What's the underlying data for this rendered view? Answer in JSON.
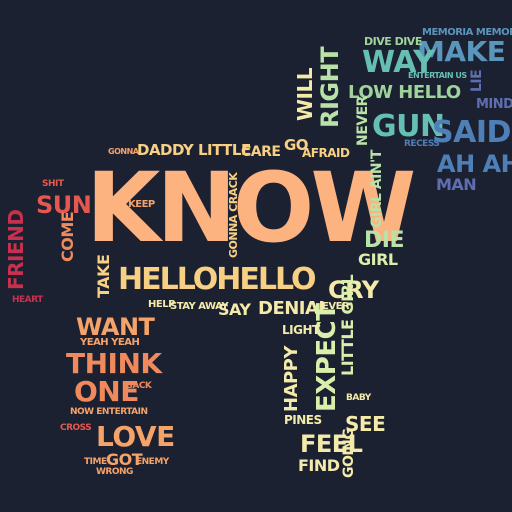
{
  "palette": {
    "background": "#1c2131",
    "peach": "#fdb380",
    "light_orange": "#f6a36a",
    "orange": "#f08a5d",
    "red_orange": "#e5584f",
    "crimson": "#c8304d",
    "yellow": "#f7d084",
    "pale_yellow": "#f4ebaa",
    "pale_green": "#d9efab",
    "light_green": "#b8e2a7",
    "green": "#9ed49b",
    "teal": "#66bfb3",
    "steel_blue": "#5a95bc",
    "blue": "#4e7fb6",
    "indigo": "#5e6fb1",
    "purple": "#6f4f9f"
  },
  "words": [
    {
      "id": "know",
      "text": "KNOW",
      "color": "peach"
    },
    {
      "id": "hellohello",
      "text": "HELLOHELLO",
      "color": "yellow"
    },
    {
      "id": "daddy-little",
      "text": "DADDY LITTLE",
      "color": "yellow"
    },
    {
      "id": "care",
      "text": "CARE",
      "color": "yellow"
    },
    {
      "id": "go",
      "text": "GO",
      "color": "yellow"
    },
    {
      "id": "afraid",
      "text": "AFRAID",
      "color": "yellow"
    },
    {
      "id": "make",
      "text": "MAKE",
      "color": "steel_blue"
    },
    {
      "id": "way",
      "text": "WAY",
      "color": "teal"
    },
    {
      "id": "right",
      "text": "RIGHT",
      "color": "light_green"
    },
    {
      "id": "low-hello",
      "text": "LOW HELLO",
      "color": "green"
    },
    {
      "id": "gun",
      "text": "GUN",
      "color": "teal"
    },
    {
      "id": "said",
      "text": "SAID",
      "color": "blue"
    },
    {
      "id": "ah-ah",
      "text": "AH AH",
      "color": "blue"
    },
    {
      "id": "man",
      "text": "MAN",
      "color": "indigo"
    },
    {
      "id": "never",
      "text": "NEVER",
      "color": "light_green"
    },
    {
      "id": "will",
      "text": "WILL",
      "color": "pale_yellow"
    },
    {
      "id": "die",
      "text": "DIE",
      "color": "light_green"
    },
    {
      "id": "girl",
      "text": "GIRL",
      "color": "pale_green"
    },
    {
      "id": "cry",
      "text": "CRY",
      "color": "pale_yellow"
    },
    {
      "id": "denial",
      "text": "DENIAL",
      "color": "pale_yellow"
    },
    {
      "id": "say",
      "text": "SAY",
      "color": "pale_yellow"
    },
    {
      "id": "stay-away",
      "text": "STAY AWAY",
      "color": "pale_yellow"
    },
    {
      "id": "want",
      "text": "WANT",
      "color": "light_orange"
    },
    {
      "id": "think",
      "text": "THINK",
      "color": "orange"
    },
    {
      "id": "one",
      "text": "ONE",
      "color": "orange"
    },
    {
      "id": "love",
      "text": "LOVE",
      "color": "light_orange"
    },
    {
      "id": "got",
      "text": "GOT",
      "color": "light_orange"
    },
    {
      "id": "sun",
      "text": "SUN",
      "color": "red_orange"
    },
    {
      "id": "friend",
      "text": "FRIEND",
      "color": "crimson"
    },
    {
      "id": "come",
      "text": "COME",
      "color": "orange"
    },
    {
      "id": "take",
      "text": "TAKE",
      "color": "yellow"
    },
    {
      "id": "happy",
      "text": "HAPPY",
      "color": "pale_yellow"
    },
    {
      "id": "expect",
      "text": "EXPECT",
      "color": "pale_green"
    },
    {
      "id": "little-girl",
      "text": "LITTLE GIRL",
      "color": "pale_green"
    },
    {
      "id": "feel",
      "text": "FEEL",
      "color": "pale_yellow"
    },
    {
      "id": "find",
      "text": "FIND",
      "color": "pale_yellow"
    },
    {
      "id": "see",
      "text": "SEE",
      "color": "pale_yellow"
    },
    {
      "id": "pines",
      "text": "PINES",
      "color": "pale_yellow"
    },
    {
      "id": "light",
      "text": "LIGHT",
      "color": "pale_yellow"
    },
    {
      "id": "memoria",
      "text": "MEMORIA MEMORIA",
      "color": "steel_blue"
    },
    {
      "id": "dive-dive",
      "text": "DIVE DIVE",
      "color": "green"
    },
    {
      "id": "girl-aint",
      "text": "GIRL AIN'T",
      "color": "light_green"
    },
    {
      "id": "gonna-crack",
      "text": "GONNA CRACK",
      "color": "yellow"
    },
    {
      "id": "keep",
      "text": "KEEP",
      "color": "light_orange"
    },
    {
      "id": "going",
      "text": "GOING",
      "color": "pale_yellow"
    },
    {
      "id": "mind",
      "text": "MIND",
      "color": "indigo"
    },
    {
      "id": "lie",
      "text": "LIE",
      "color": "indigo"
    },
    {
      "id": "now-entertain",
      "text": "NOW ENTERTAIN",
      "color": "light_orange"
    },
    {
      "id": "yeah-yeah",
      "text": "YEAH YEAH",
      "color": "light_orange"
    },
    {
      "id": "help",
      "text": "HELP",
      "color": "pale_yellow"
    },
    {
      "id": "heart",
      "text": "HEART",
      "color": "crimson"
    },
    {
      "id": "shit",
      "text": "SHIT",
      "color": "red_orange"
    },
    {
      "id": "gonna",
      "text": "GONNA",
      "color": "light_orange"
    },
    {
      "id": "entertain-us",
      "text": "ENTERTAIN US",
      "color": "teal"
    },
    {
      "id": "recess",
      "text": "RECESS",
      "color": "blue"
    },
    {
      "id": "wrong",
      "text": "WRONG",
      "color": "light_orange"
    },
    {
      "id": "enemy",
      "text": "ENEMY",
      "color": "light_orange"
    },
    {
      "id": "cross",
      "text": "CROSS",
      "color": "red_orange"
    },
    {
      "id": "time",
      "text": "TIME",
      "color": "light_orange"
    },
    {
      "id": "back",
      "text": "BACK",
      "color": "orange"
    },
    {
      "id": "ever",
      "text": "EVER",
      "color": "pale_yellow"
    },
    {
      "id": "baby",
      "text": "BABY",
      "color": "pale_yellow"
    }
  ]
}
